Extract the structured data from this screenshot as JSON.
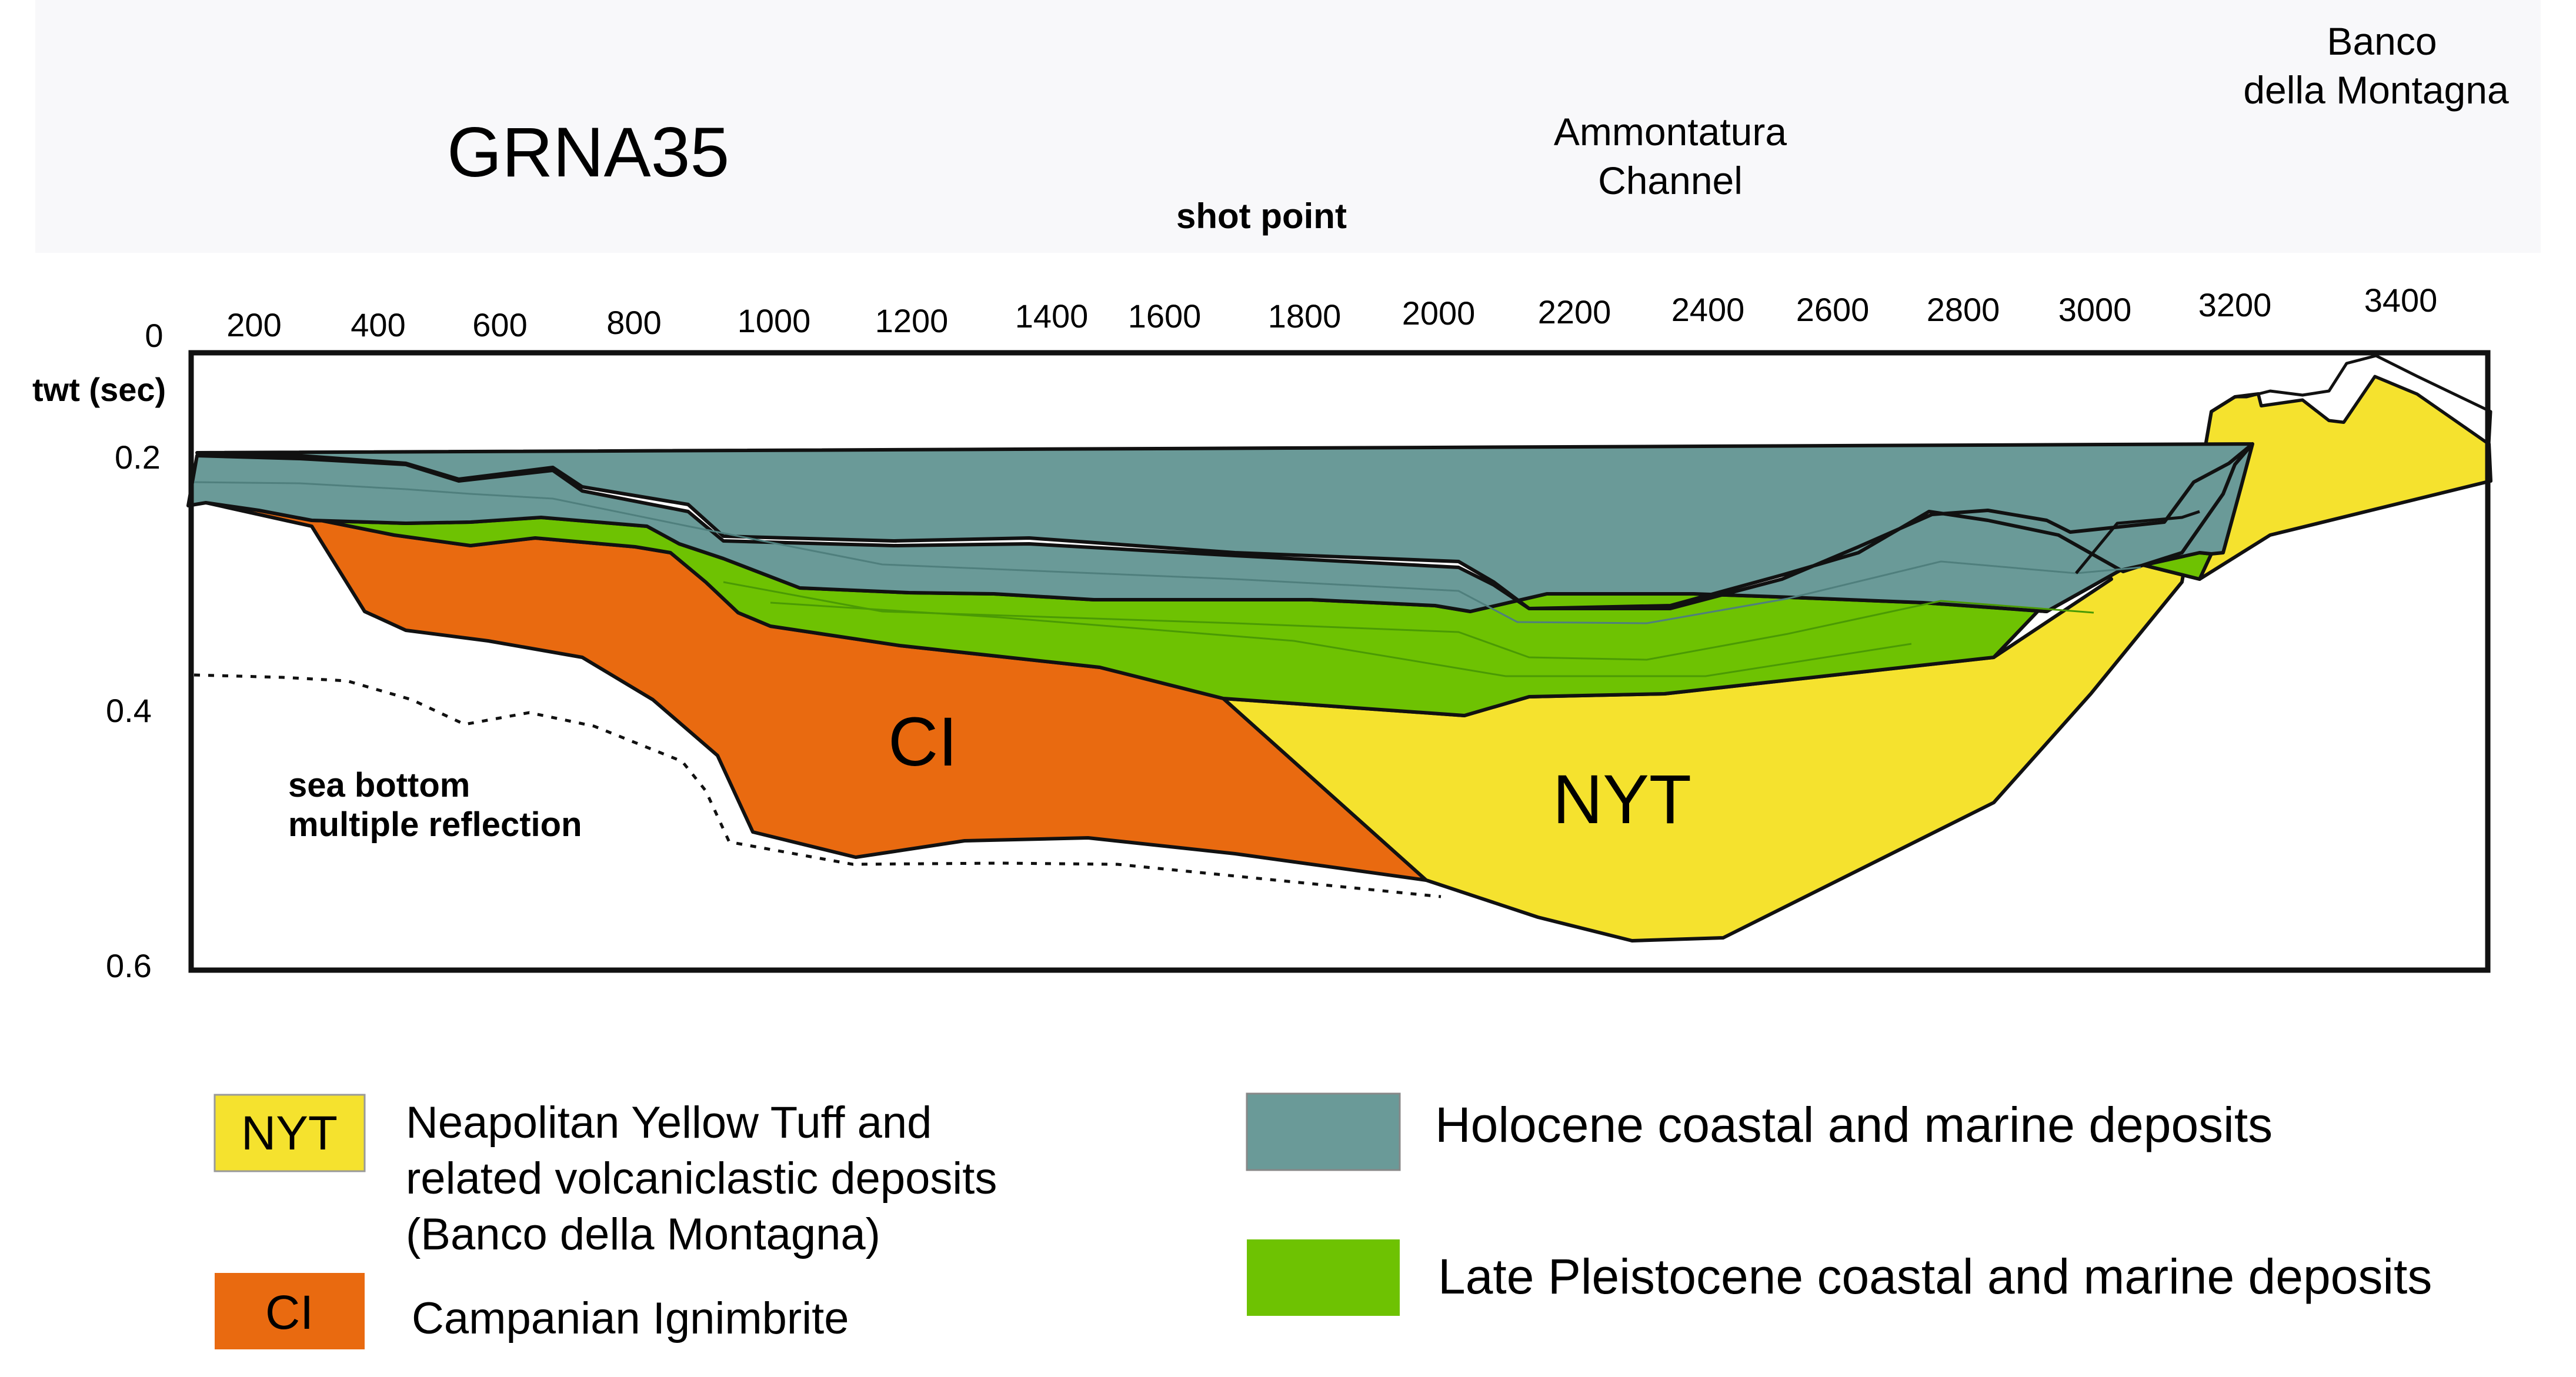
{
  "header": {
    "title": "GRNA35",
    "shot_point_label": "shot point",
    "location_1_line1": "Ammontatura",
    "location_1_line2": "Channel",
    "location_2_line1": "Banco",
    "location_2_line2": "della Montagna"
  },
  "axes": {
    "y_title": "twt (sec)",
    "origin_label": "0",
    "shot_points": [
      "200",
      "400",
      "600",
      "800",
      "1000",
      "1200",
      "1400",
      "1600",
      "1800",
      "2000",
      "2200",
      "2400",
      "2600",
      "2800",
      "3000",
      "3200",
      "3400"
    ],
    "twt_ticks": [
      "0.2",
      "0.4",
      "0.6"
    ]
  },
  "section": {
    "ci_label": "CI",
    "nyt_label": "NYT",
    "multiple_line1": "sea bottom",
    "multiple_line2": "multiple reflection"
  },
  "legend": {
    "nyt_code": "NYT",
    "nyt_line1": "Neapolitan Yellow Tuff and",
    "nyt_line2": "related volcaniclastic deposits",
    "nyt_line3": "(Banco della Montagna)",
    "ci_code": "CI",
    "ci_text": "Campanian Ignimbrite",
    "holocene_text": "Holocene coastal and marine deposits",
    "pleistocene_text": "Late Pleistocene coastal and marine deposits"
  },
  "colors": {
    "holocene": "#6a9a98",
    "pleistocene": "#6ec202",
    "nyt": "#f5e22e",
    "ci": "#e96a10",
    "header_band": "#f8f8fa"
  }
}
